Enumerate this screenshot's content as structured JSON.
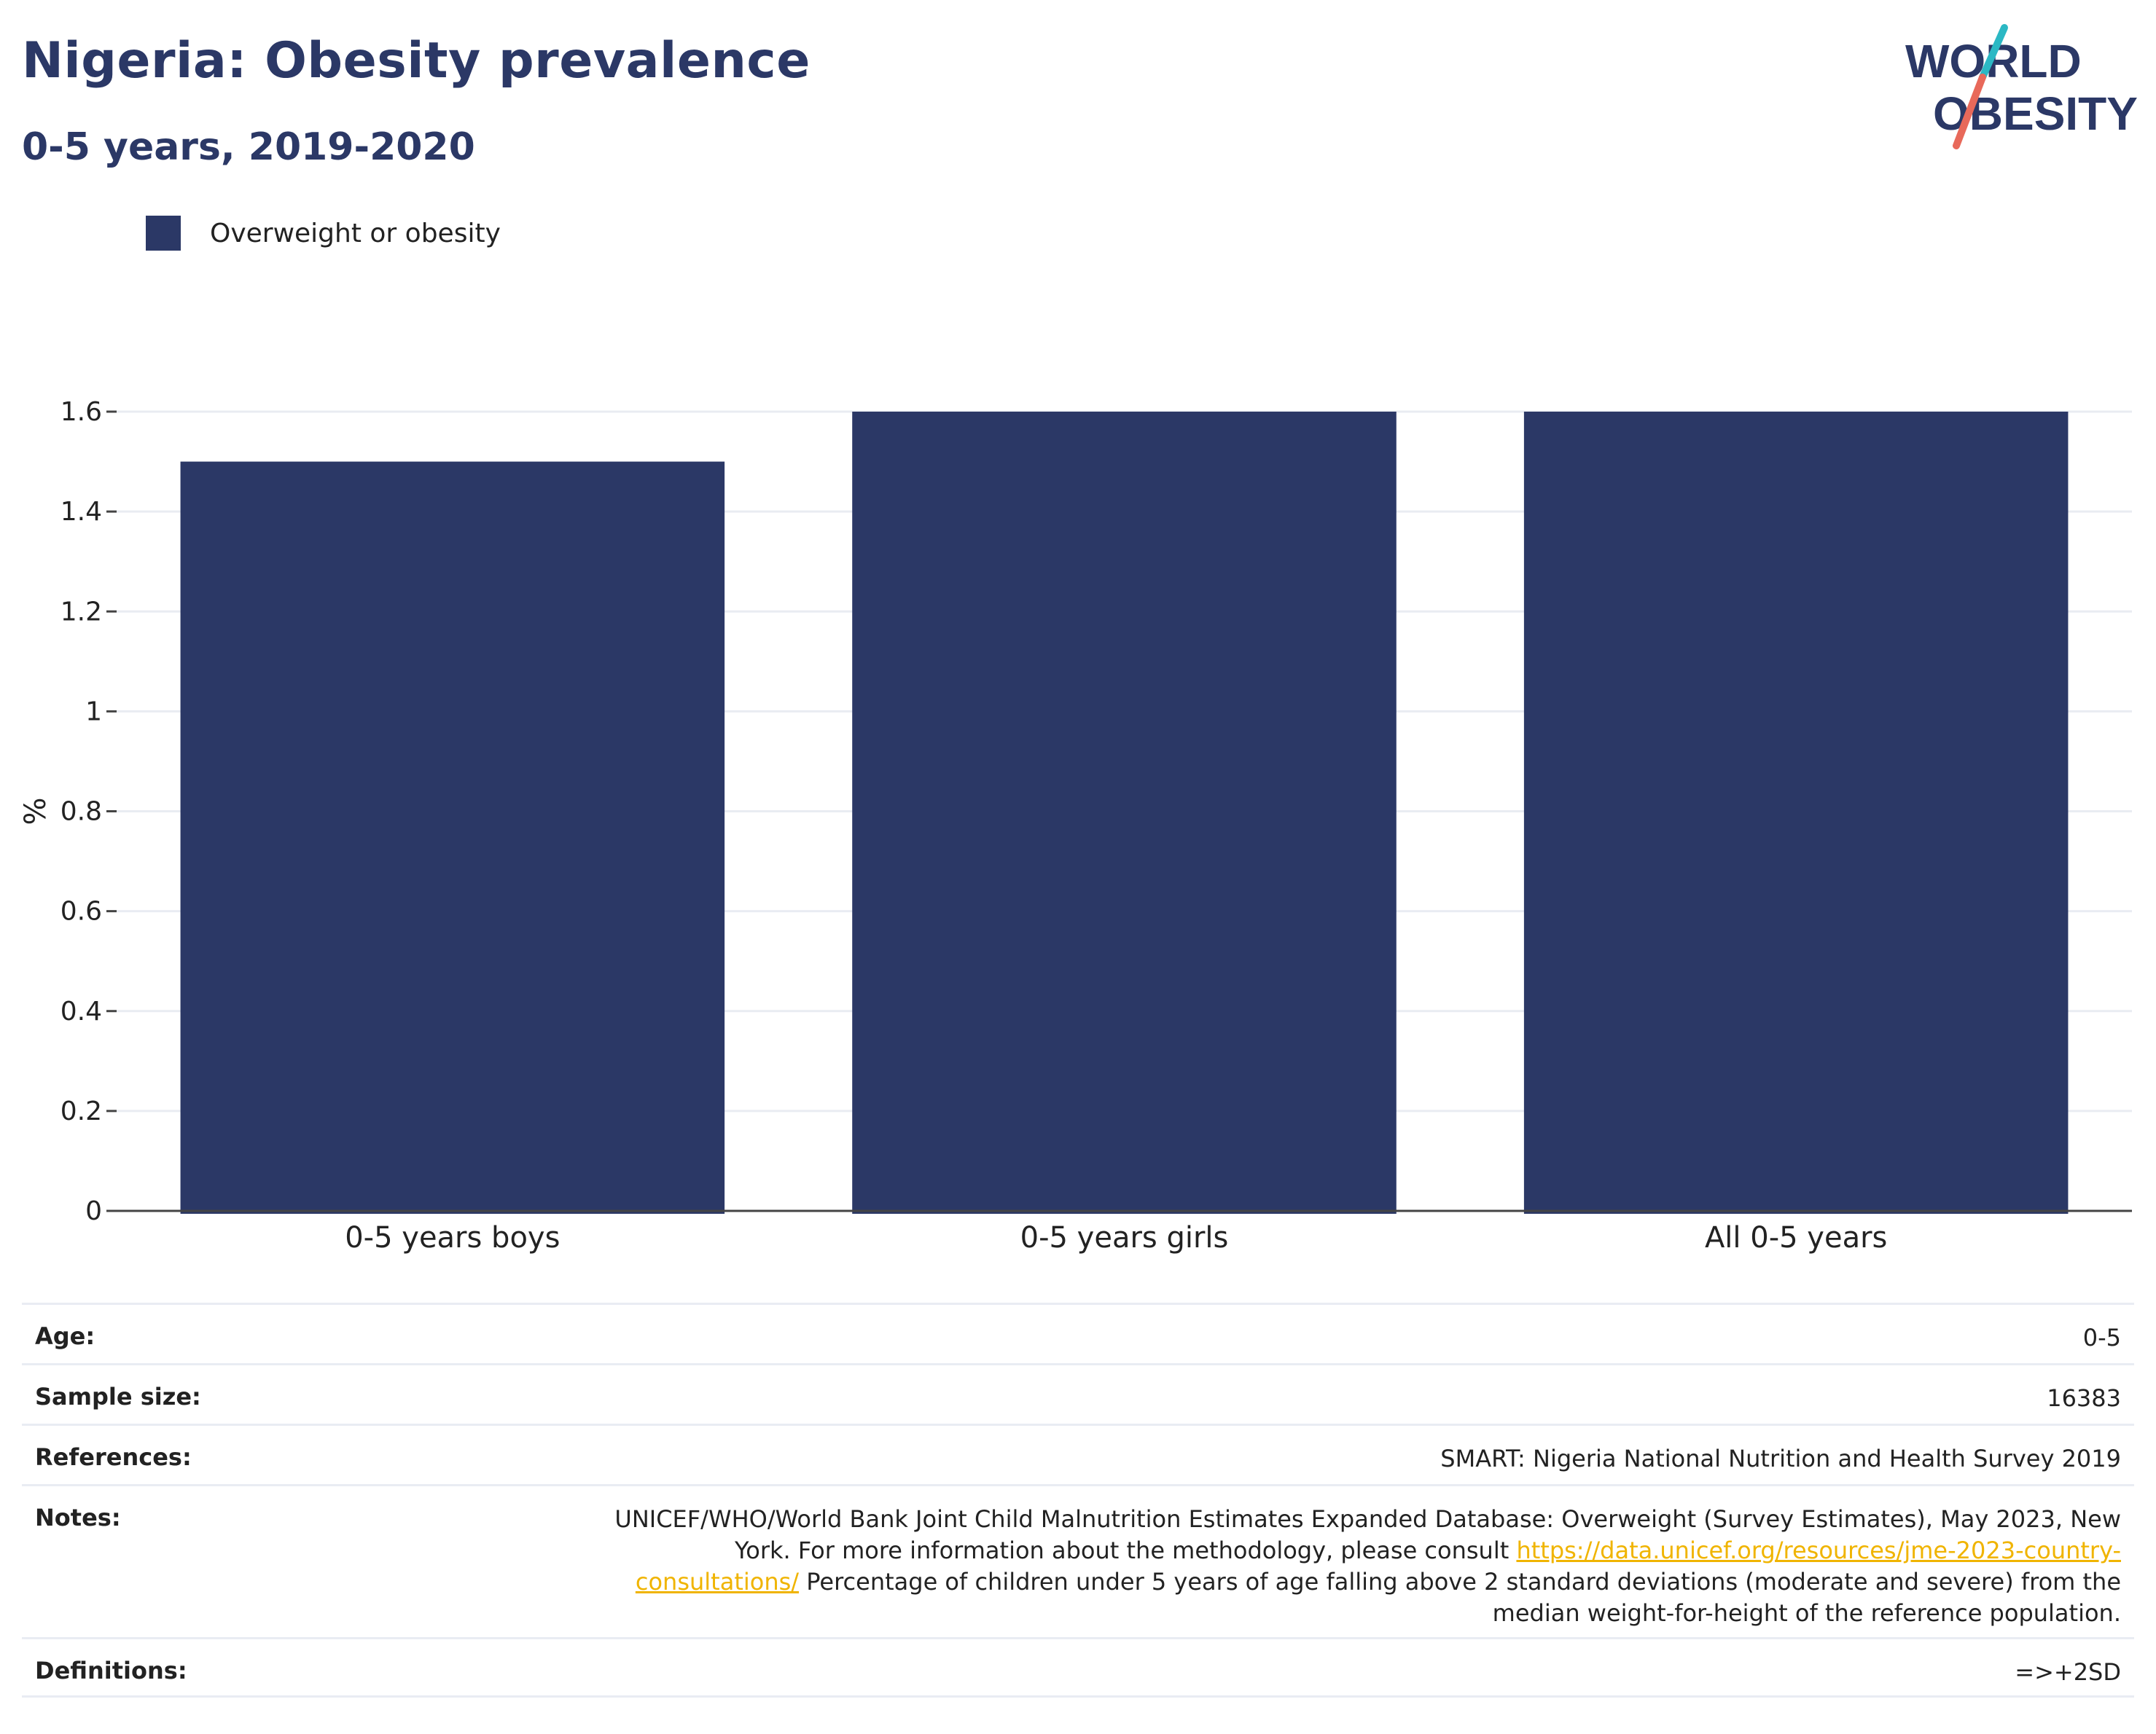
{
  "header": {
    "title": "Nigeria: Obesity prevalence",
    "subtitle": "0-5 years, 2019-2020"
  },
  "logo": {
    "line1": "WORLD",
    "line2": "OBESITY",
    "colors": {
      "text": "#2b3866",
      "slash_top": "#2bb8c4",
      "slash_bottom": "#e8695a"
    }
  },
  "legend": {
    "label": "Overweight or obesity",
    "color": "#2b3866"
  },
  "chart_data": {
    "type": "bar",
    "categories": [
      "0-5 years boys",
      "0-5 years girls",
      "All 0-5 years"
    ],
    "series": [
      {
        "name": "Overweight or obesity",
        "values": [
          1.5,
          1.6,
          1.6
        ],
        "color": "#2b3866"
      }
    ],
    "ylabel": "%",
    "ylim": [
      0,
      1.6
    ],
    "yticks": [
      0,
      0.2,
      0.4,
      0.6,
      0.8,
      1,
      1.2,
      1.4,
      1.6
    ],
    "ytick_labels": [
      "0",
      "0.2",
      "0.4",
      "0.6",
      "0.8",
      "1",
      "1.2",
      "1.4",
      "1.6"
    ],
    "grid": true,
    "legend_position": "top-left"
  },
  "info": {
    "age": {
      "label": "Age:",
      "value": "0-5"
    },
    "sample_size": {
      "label": "Sample size:",
      "value": "16383"
    },
    "references": {
      "label": "References:",
      "value": "SMART: Nigeria National Nutrition and Health Survey 2019"
    },
    "notes": {
      "label": "Notes:",
      "text_before_link": "UNICEF/WHO/World Bank Joint Child Malnutrition Estimates Expanded Database: Overweight (Survey Estimates), May 2023, New York. For more information about the methodology, please consult ",
      "link": "https://data.unicef.org/resources/jme-2023-country-consultations/",
      "text_after_link": " Percentage of children under 5 years of age falling above 2 standard deviations (moderate and severe) from the median weight-for-height of the reference population."
    },
    "definitions": {
      "label": "Definitions:",
      "value": "=>+2SD"
    }
  }
}
